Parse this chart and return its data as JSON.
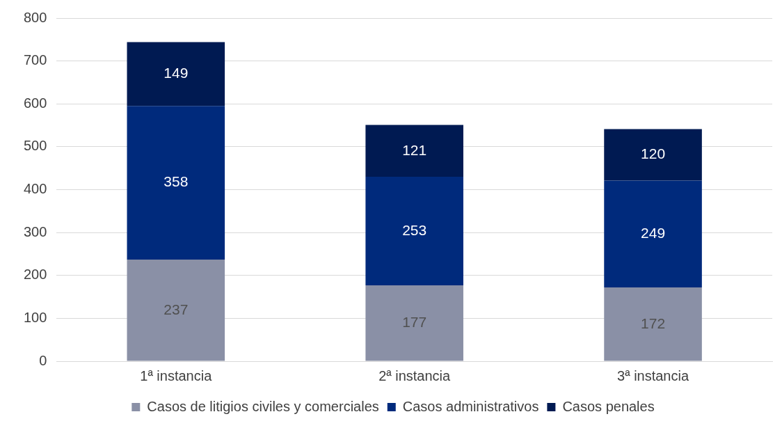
{
  "chart_data": {
    "type": "bar",
    "stacked": true,
    "categories": [
      "1ª instancia",
      "2ª instancia",
      "3ª instancia"
    ],
    "series": [
      {
        "name": "Casos de litigios civiles y comerciales",
        "color": "#8a90a6",
        "values": [
          237,
          177,
          172
        ]
      },
      {
        "name": "Casos administrativos",
        "color": "#002a7c",
        "values": [
          358,
          253,
          249
        ]
      },
      {
        "name": "Casos penales",
        "color": "#001a52",
        "values": [
          149,
          121,
          120
        ]
      }
    ],
    "ylim": [
      0,
      800
    ],
    "yticks": [
      0,
      100,
      200,
      300,
      400,
      500,
      600,
      700,
      800
    ],
    "grid": "y",
    "legend": "bottom",
    "data_labels": true
  }
}
